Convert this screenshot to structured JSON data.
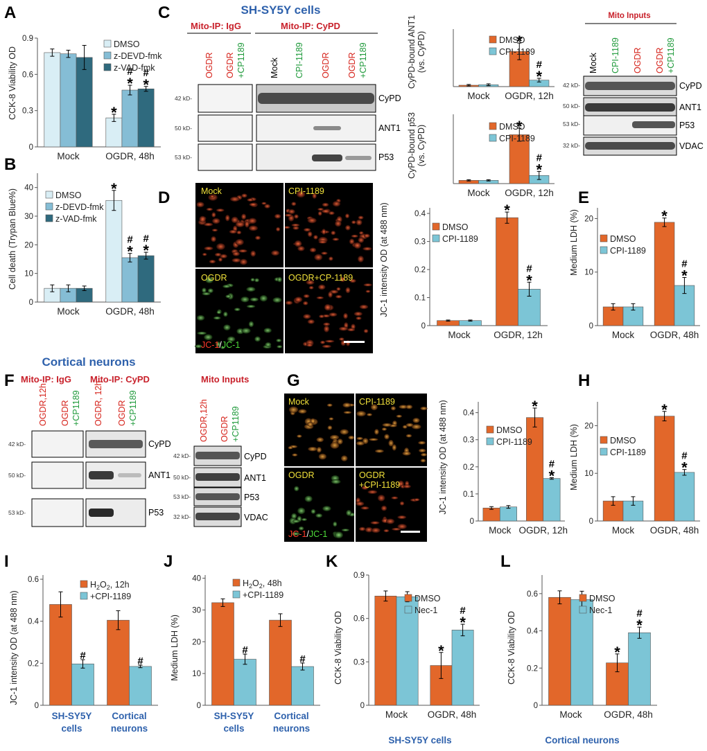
{
  "colors": {
    "orange": "#e2672a",
    "teal": "#7cc5d6",
    "lightblue": "#d9eef5",
    "midblue": "#85bdd5",
    "darkteal": "#2f6a7e",
    "blue": "#2e61ac",
    "red": "#d6241c",
    "green": "#1f9a3b"
  },
  "panels": {
    "A": {
      "label": "A",
      "ylabel": "CCK-8 Viability OD"
    },
    "B": {
      "label": "B",
      "ylabel": "Cell death (Trypan Blue%)"
    },
    "C": {
      "label": "C",
      "title": "SH-SY5Y cells",
      "ip_igg": "Mito-IP: IgG",
      "ip_cypd": "Mito-IP: CyPD",
      "inputs": "Mito Inputs",
      "lanes_igg": [
        "OGDR",
        "OGDR",
        "+CP1189"
      ],
      "lanes_cypd": [
        "Mock",
        "CPI-1189",
        "OGDR",
        "OGDR",
        "+CP1189"
      ],
      "lanes_inputs": [
        "Mock",
        "CPI-1189",
        "OGDR",
        "OGDR",
        "+CP1189"
      ],
      "bands": [
        "CyPD",
        "ANT1",
        "P53"
      ],
      "input_bands": [
        "CyPD",
        "ANT1",
        "P53",
        "VDAC"
      ],
      "kd_ip": [
        "42 kD-",
        "50 kD-",
        "53 kD-"
      ],
      "kd_in": [
        "42 kD-",
        "50 kD-",
        "53 kD-",
        "32 kD-"
      ]
    },
    "D": {
      "label": "D",
      "ylabel": "JC-1 intensity OD (at 488 nm)",
      "micro": [
        "Mock",
        "CPI-1189",
        "OGDR",
        "OGDR+CP-1189"
      ],
      "stain_red": "JC-1",
      "stain_sep": "/",
      "stain_green": "JC-1"
    },
    "E": {
      "label": "E",
      "ylabel": "Medium LDH (%)"
    },
    "F": {
      "label": "F",
      "title": "Cortical neurons",
      "ip_igg": "Mito-IP: IgG",
      "ip_cypd": "Mito-IP: CyPD",
      "inputs": "Mito Inputs",
      "lanes_igg": [
        "OGDR,12h",
        "OGDR",
        "+CP1189"
      ],
      "lanes_cypd": [
        "OGDR, 12h",
        "OGDR",
        "+CP1189"
      ],
      "lanes_inputs": [
        "OGDR,12h",
        "OGDR",
        "+CP1189"
      ],
      "bands": [
        "CyPD",
        "ANT1",
        "P53"
      ],
      "input_bands": [
        "CyPD",
        "ANT1",
        "P53",
        "VDAC"
      ],
      "kd_ip": [
        "42 kD-",
        "50 kD-",
        "53 kD-"
      ],
      "kd_in": [
        "42 kD-",
        "50 kD-",
        "53 kD-",
        "32 kD-"
      ]
    },
    "G": {
      "label": "G",
      "ylabel": "JC-1 intensity OD (at 488 nm)",
      "micro": [
        "Mock",
        "CPI-1189",
        "OGDR",
        "OGDR",
        "+CPI-1189"
      ],
      "stain_red": "JC-1",
      "stain_sep": "/",
      "stain_green": "JC-1"
    },
    "H": {
      "label": "H",
      "ylabel": "Medium LDH (%)"
    },
    "I": {
      "label": "I",
      "ylabel": "JC-1 intensity OD (at 488 nm)"
    },
    "J": {
      "label": "J",
      "ylabel": "Medium LDH (%)"
    },
    "K": {
      "label": "K",
      "ylabel": "CCK-8 Viability OD",
      "footer": "SH-SY5Y cells"
    },
    "L": {
      "label": "L",
      "ylabel": "CCK-8 Viability OD",
      "footer": "Cortical neurons"
    }
  },
  "chart_data": [
    {
      "id": "A",
      "type": "bar",
      "categories": [
        "Mock",
        "OGDR, 48h"
      ],
      "ylabel": "CCK-8 Viability OD",
      "ylim": [
        0,
        0.9
      ],
      "yticks": [
        0,
        0.3,
        0.6,
        0.9
      ],
      "series": [
        {
          "name": "DMSO",
          "values": [
            0.78,
            0.24
          ],
          "err": [
            0.03,
            0.03
          ],
          "sig": [
            "",
            "*"
          ]
        },
        {
          "name": "z-DEVD-fmk",
          "values": [
            0.77,
            0.47
          ],
          "err": [
            0.03,
            0.04
          ],
          "sig": [
            "",
            "*#"
          ]
        },
        {
          "name": "z-VAD-fmk",
          "values": [
            0.74,
            0.48
          ],
          "err": [
            0.1,
            0.02
          ],
          "sig": [
            "",
            "*#"
          ]
        }
      ]
    },
    {
      "id": "B",
      "type": "bar",
      "categories": [
        "Mock",
        "OGDR, 48h"
      ],
      "ylabel": "Cell death (Trypan Blue%)",
      "ylim": [
        0,
        45
      ],
      "yticks": [
        0,
        10,
        20,
        30,
        40
      ],
      "series": [
        {
          "name": "DMSO",
          "values": [
            4.8,
            35.5
          ],
          "err": [
            1.2,
            3.5
          ],
          "sig": [
            "",
            "*"
          ]
        },
        {
          "name": "z-DEVD-fmk",
          "values": [
            4.8,
            15.5
          ],
          "err": [
            1.2,
            1.5
          ],
          "sig": [
            "",
            "*#"
          ]
        },
        {
          "name": "z-VAD-fmk",
          "values": [
            4.8,
            16.2
          ],
          "err": [
            0.8,
            1.2
          ],
          "sig": [
            "",
            "*#"
          ]
        }
      ]
    },
    {
      "id": "C1",
      "type": "bar",
      "categories": [
        "Mock",
        "OGDR, 12h"
      ],
      "ylabel": "CyPD-bound ANT1 (vs. CyPD)",
      "ylim": [
        0,
        0.62
      ],
      "yticks": [],
      "series": [
        {
          "name": "DMSO",
          "values": [
            0.015,
            0.38
          ],
          "err": [
            0.008,
            0.09
          ],
          "sig": [
            "",
            "*"
          ]
        },
        {
          "name": "CPI-1189",
          "values": [
            0.02,
            0.07
          ],
          "err": [
            0.01,
            0.02
          ],
          "sig": [
            "",
            "*#"
          ]
        }
      ]
    },
    {
      "id": "C2",
      "type": "bar",
      "categories": [
        "Mock",
        "OGDR, 12h"
      ],
      "ylabel": "CyPD-bound p53 (vs. CyPD)",
      "ylim": [
        0,
        0.85
      ],
      "yticks": [],
      "series": [
        {
          "name": "DMSO",
          "values": [
            0.04,
            0.6
          ],
          "err": [
            0.008,
            0.08
          ],
          "sig": [
            "",
            "*"
          ]
        },
        {
          "name": "CPI-1189",
          "values": [
            0.04,
            0.1
          ],
          "err": [
            0.008,
            0.05
          ],
          "sig": [
            "",
            "*#"
          ]
        }
      ]
    },
    {
      "id": "D",
      "type": "bar",
      "categories": [
        "Mock",
        "OGDR, 12h"
      ],
      "ylabel": "JC-1 intensity OD (at 488 nm)",
      "ylim": [
        0,
        0.42
      ],
      "yticks": [
        0,
        0.1,
        0.2,
        0.3,
        0.4
      ],
      "series": [
        {
          "name": "DMSO",
          "values": [
            0.018,
            0.385
          ],
          "err": [
            0.002,
            0.02
          ],
          "sig": [
            "",
            "*"
          ]
        },
        {
          "name": "CPI-1189",
          "values": [
            0.018,
            0.13
          ],
          "err": [
            0.002,
            0.025
          ],
          "sig": [
            "",
            "*#"
          ]
        }
      ]
    },
    {
      "id": "E",
      "type": "bar",
      "categories": [
        "Mock",
        "OGDR, 48h"
      ],
      "ylabel": "Medium LDH (%)",
      "ylim": [
        0,
        22
      ],
      "yticks": [
        0,
        10,
        20
      ],
      "series": [
        {
          "name": "DMSO",
          "values": [
            3.5,
            19.3
          ],
          "err": [
            0.6,
            0.8
          ],
          "sig": [
            "",
            "*"
          ]
        },
        {
          "name": "CPI-1189",
          "values": [
            3.5,
            7.5
          ],
          "err": [
            0.6,
            1.5
          ],
          "sig": [
            "",
            "*#"
          ]
        }
      ]
    },
    {
      "id": "G",
      "type": "bar",
      "categories": [
        "Mock",
        "OGDR, 12h"
      ],
      "ylabel": "JC-1 intensity OD (at 488 nm)",
      "ylim": [
        0,
        0.44
      ],
      "yticks": [
        0,
        0.1,
        0.2,
        0.3,
        0.4
      ],
      "series": [
        {
          "name": "DMSO",
          "values": [
            0.048,
            0.382
          ],
          "err": [
            0.005,
            0.035
          ],
          "sig": [
            "",
            "*"
          ]
        },
        {
          "name": "CPI-1189",
          "values": [
            0.052,
            0.157
          ],
          "err": [
            0.005,
            0.003
          ],
          "sig": [
            "",
            "*#"
          ]
        }
      ]
    },
    {
      "id": "H",
      "type": "bar",
      "categories": [
        "Mock",
        "OGDR, 48h"
      ],
      "ylabel": "Medium LDH (%)",
      "ylim": [
        0,
        25
      ],
      "yticks": [
        0,
        10,
        20
      ],
      "series": [
        {
          "name": "DMSO",
          "values": [
            4.2,
            22.0
          ],
          "err": [
            0.9,
            1.0
          ],
          "sig": [
            "",
            "*"
          ]
        },
        {
          "name": "CPI-1189",
          "values": [
            4.2,
            10.2
          ],
          "err": [
            0.9,
            0.6
          ],
          "sig": [
            "",
            "*#"
          ]
        }
      ]
    },
    {
      "id": "I",
      "type": "bar",
      "categories": [
        "SH-SY5Y cells",
        "Cortical neurons"
      ],
      "ylabel": "JC-1 intensity OD (at 488 nm)",
      "ylim": [
        0,
        0.62
      ],
      "yticks": [
        0,
        0.2,
        0.4,
        0.6
      ],
      "series": [
        {
          "name": "H2O2, 12h",
          "values": [
            0.48,
            0.405
          ],
          "err": [
            0.06,
            0.045
          ],
          "sig": [
            "",
            ""
          ]
        },
        {
          "name": "+CPI-1189",
          "values": [
            0.197,
            0.185
          ],
          "err": [
            0.02,
            0.006
          ],
          "sig": [
            "#",
            "#"
          ]
        }
      ]
    },
    {
      "id": "J",
      "type": "bar",
      "categories": [
        "SH-SY5Y cells",
        "Cortical neurons"
      ],
      "ylabel": "Medium LDH (%)",
      "ylim": [
        0,
        41
      ],
      "yticks": [
        0,
        10,
        20,
        30,
        40
      ],
      "series": [
        {
          "name": "H2O2, 48h",
          "values": [
            32.3,
            26.8
          ],
          "err": [
            1.2,
            2.0
          ],
          "sig": [
            "",
            ""
          ]
        },
        {
          "name": "+CPI-1189",
          "values": [
            14.5,
            12.2
          ],
          "err": [
            1.6,
            1.1
          ],
          "sig": [
            "#",
            "#"
          ]
        }
      ]
    },
    {
      "id": "K",
      "type": "bar",
      "categories": [
        "Mock",
        "OGDR, 48h"
      ],
      "ylabel": "CCK-8 Viability OD",
      "ylim": [
        0,
        0.9
      ],
      "yticks": [
        0,
        0.3,
        0.6,
        0.9
      ],
      "series": [
        {
          "name": "DMSO",
          "values": [
            0.755,
            0.275
          ],
          "err": [
            0.035,
            0.09
          ],
          "sig": [
            "",
            "*"
          ]
        },
        {
          "name": "Nec-1",
          "values": [
            0.75,
            0.52
          ],
          "err": [
            0.035,
            0.04
          ],
          "sig": [
            "",
            "*#"
          ]
        }
      ]
    },
    {
      "id": "L",
      "type": "bar",
      "categories": [
        "Mock",
        "OGDR, 48h"
      ],
      "ylabel": "CCK-8 Viability OD",
      "ylim": [
        0,
        0.7
      ],
      "yticks": [
        0,
        0.2,
        0.4,
        0.6
      ],
      "series": [
        {
          "name": "DMSO",
          "values": [
            0.58,
            0.228
          ],
          "err": [
            0.035,
            0.048
          ],
          "sig": [
            "",
            "*"
          ]
        },
        {
          "name": "Nec-1",
          "values": [
            0.568,
            0.39
          ],
          "err": [
            0.045,
            0.03
          ],
          "sig": [
            "",
            "*#"
          ]
        }
      ]
    }
  ]
}
